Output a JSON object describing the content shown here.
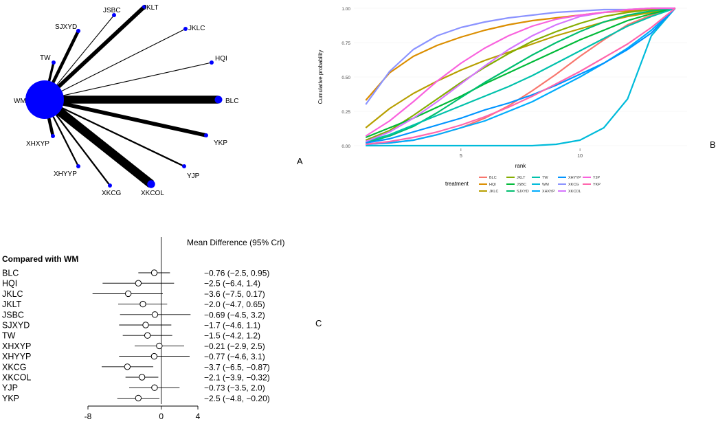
{
  "panel_labels": {
    "network": "A",
    "rankogram": "B",
    "forest": "C"
  },
  "chart_data": [
    {
      "type": "network",
      "nodes": [
        "WM",
        "BLC",
        "HQI",
        "JKLC",
        "JKLT",
        "JSBC",
        "SJXYD",
        "TW",
        "XHXYP",
        "XHYYP",
        "XKCG",
        "XKCOL",
        "YJP",
        "YKP"
      ],
      "hub": "WM",
      "node_weights": [
        1.0,
        0.25,
        0.08,
        0.08,
        0.12,
        0.08,
        0.14,
        0.12,
        0.1,
        0.09,
        0.1,
        0.26,
        0.09,
        0.12
      ],
      "edges": [
        {
          "to": "BLC",
          "weight": 10
        },
        {
          "to": "HQI",
          "weight": 1
        },
        {
          "to": "JKLC",
          "weight": 1
        },
        {
          "to": "JKLT",
          "weight": 5
        },
        {
          "to": "JSBC",
          "weight": 1
        },
        {
          "to": "SJXYD",
          "weight": 4
        },
        {
          "to": "TW",
          "weight": 3
        },
        {
          "to": "XHXYP",
          "weight": 4
        },
        {
          "to": "XHYYP",
          "weight": 2
        },
        {
          "to": "XKCG",
          "weight": 2
        },
        {
          "to": "XKCOL",
          "weight": 11
        },
        {
          "to": "YJP",
          "weight": 2
        },
        {
          "to": "YKP",
          "weight": 5
        }
      ]
    },
    {
      "type": "line",
      "xlabel": "rank",
      "ylabel": "Cumulative probability",
      "x_ticks": [
        5,
        10
      ],
      "y_ticks": [
        "0.00",
        "0.25",
        "0.50",
        "0.75",
        "1.00"
      ],
      "xlim": [
        1,
        14
      ],
      "ylim": [
        0,
        1
      ],
      "legend_title": "treatment",
      "legend_position": "bottom",
      "x": [
        1,
        2,
        3,
        4,
        5,
        6,
        7,
        8,
        9,
        10,
        11,
        12,
        13,
        14
      ],
      "series": [
        {
          "name": "BLC",
          "color": "#F8766D",
          "values": [
            0.01,
            0.02,
            0.04,
            0.08,
            0.13,
            0.2,
            0.29,
            0.4,
            0.52,
            0.65,
            0.77,
            0.88,
            0.95,
            1.0
          ]
        },
        {
          "name": "HQI",
          "color": "#DB8E00",
          "values": [
            0.33,
            0.53,
            0.65,
            0.73,
            0.79,
            0.84,
            0.88,
            0.91,
            0.93,
            0.95,
            0.97,
            0.98,
            0.99,
            1.0
          ]
        },
        {
          "name": "JKLC",
          "color": "#B79F00",
          "values": [
            0.13,
            0.27,
            0.38,
            0.47,
            0.55,
            0.62,
            0.68,
            0.74,
            0.8,
            0.85,
            0.9,
            0.94,
            0.97,
            1.0
          ]
        },
        {
          "name": "JKLT",
          "color": "#85AD00",
          "values": [
            0.04,
            0.11,
            0.22,
            0.34,
            0.46,
            0.57,
            0.67,
            0.76,
            0.83,
            0.89,
            0.94,
            0.97,
            0.99,
            1.0
          ]
        },
        {
          "name": "JSBC",
          "color": "#00BA38",
          "values": [
            0.06,
            0.13,
            0.2,
            0.28,
            0.36,
            0.45,
            0.53,
            0.61,
            0.69,
            0.77,
            0.84,
            0.91,
            0.96,
            1.0
          ]
        },
        {
          "name": "SJXYD",
          "color": "#00BE70",
          "values": [
            0.02,
            0.07,
            0.14,
            0.24,
            0.35,
            0.46,
            0.56,
            0.66,
            0.75,
            0.83,
            0.9,
            0.95,
            0.98,
            1.0
          ]
        },
        {
          "name": "TW",
          "color": "#00C1AB",
          "values": [
            0.03,
            0.08,
            0.15,
            0.22,
            0.29,
            0.36,
            0.43,
            0.51,
            0.6,
            0.69,
            0.78,
            0.87,
            0.94,
            1.0
          ]
        },
        {
          "name": "WM",
          "color": "#00BBDA",
          "values": [
            0.0,
            0.0,
            0.0,
            0.0,
            0.0,
            0.0,
            0.0,
            0.0,
            0.01,
            0.04,
            0.13,
            0.34,
            0.8,
            1.0
          ]
        },
        {
          "name": "XHXYP",
          "color": "#00ACFC",
          "values": [
            0.01,
            0.02,
            0.04,
            0.08,
            0.13,
            0.18,
            0.25,
            0.32,
            0.41,
            0.5,
            0.6,
            0.71,
            0.84,
            1.0
          ]
        },
        {
          "name": "XHYYP",
          "color": "#0094FF",
          "values": [
            0.02,
            0.05,
            0.1,
            0.15,
            0.2,
            0.26,
            0.31,
            0.37,
            0.44,
            0.52,
            0.6,
            0.7,
            0.82,
            1.0
          ]
        },
        {
          "name": "XKCG",
          "color": "#8B93FF",
          "values": [
            0.3,
            0.54,
            0.7,
            0.8,
            0.86,
            0.9,
            0.93,
            0.95,
            0.97,
            0.98,
            0.99,
            0.99,
            1.0,
            1.0
          ]
        },
        {
          "name": "XKCOL",
          "color": "#D575FE",
          "values": [
            0.03,
            0.1,
            0.2,
            0.32,
            0.45,
            0.58,
            0.7,
            0.8,
            0.88,
            0.94,
            0.97,
            0.99,
            1.0,
            1.0
          ]
        },
        {
          "name": "YJP",
          "color": "#F962DD",
          "values": [
            0.07,
            0.18,
            0.32,
            0.47,
            0.6,
            0.71,
            0.8,
            0.87,
            0.92,
            0.95,
            0.97,
            0.99,
            1.0,
            1.0
          ]
        },
        {
          "name": "YKP",
          "color": "#FF65AC",
          "values": [
            0.01,
            0.03,
            0.06,
            0.1,
            0.15,
            0.21,
            0.28,
            0.36,
            0.45,
            0.54,
            0.64,
            0.74,
            0.86,
            1.0
          ]
        }
      ]
    },
    {
      "type": "forest",
      "title": "Mean Difference (95% CrI)",
      "group_label": "Compared with WM",
      "x_ticks": [
        -8,
        0,
        4
      ],
      "xlim": [
        -8,
        4
      ],
      "rows": [
        {
          "label": "BLC",
          "est": -0.76,
          "lo": -2.5,
          "hi": 0.95,
          "text": "−0.76 (−2.5, 0.95)"
        },
        {
          "label": "HQI",
          "est": -2.5,
          "lo": -6.4,
          "hi": 1.4,
          "text": "−2.5 (−6.4, 1.4)"
        },
        {
          "label": "JKLC",
          "est": -3.6,
          "lo": -7.5,
          "hi": 0.17,
          "text": "−3.6 (−7.5, 0.17)"
        },
        {
          "label": "JKLT",
          "est": -2.0,
          "lo": -4.7,
          "hi": 0.65,
          "text": "−2.0 (−4.7, 0.65)"
        },
        {
          "label": "JSBC",
          "est": -0.69,
          "lo": -4.5,
          "hi": 3.2,
          "text": "−0.69 (−4.5, 3.2)"
        },
        {
          "label": "SJXYD",
          "est": -1.7,
          "lo": -4.6,
          "hi": 1.1,
          "text": "−1.7 (−4.6, 1.1)"
        },
        {
          "label": "TW",
          "est": -1.5,
          "lo": -4.2,
          "hi": 1.2,
          "text": "−1.5 (−4.2, 1.2)"
        },
        {
          "label": "XHXYP",
          "est": -0.21,
          "lo": -2.9,
          "hi": 2.5,
          "text": "−0.21 (−2.9, 2.5)"
        },
        {
          "label": "XHYYP",
          "est": -0.77,
          "lo": -4.6,
          "hi": 3.1,
          "text": "−0.77 (−4.6, 3.1)"
        },
        {
          "label": "XKCG",
          "est": -3.7,
          "lo": -6.5,
          "hi": -0.87,
          "text": "−3.7 (−6.5, −0.87)"
        },
        {
          "label": "XKCOL",
          "est": -2.1,
          "lo": -3.9,
          "hi": -0.32,
          "text": "−2.1 (−3.9, −0.32)"
        },
        {
          "label": "YJP",
          "est": -0.73,
          "lo": -3.5,
          "hi": 2.0,
          "text": "−0.73 (−3.5, 2.0)"
        },
        {
          "label": "YKP",
          "est": -2.5,
          "lo": -4.8,
          "hi": -0.2,
          "text": "−2.5 (−4.8, −0.20)"
        }
      ]
    }
  ]
}
